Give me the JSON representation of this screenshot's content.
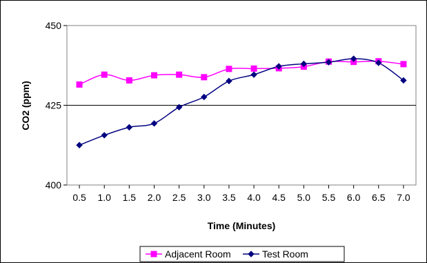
{
  "chart_data": {
    "type": "line",
    "title": "",
    "xlabel": "Time (Minutes)",
    "ylabel": "CO2 (ppm)",
    "x": [
      "0.5",
      "1.0",
      "1.5",
      "2.0",
      "2.5",
      "3.0",
      "3.5",
      "4.0",
      "4.5",
      "5.0",
      "5.5",
      "6.0",
      "6.5",
      "7.0"
    ],
    "ylim": [
      400,
      450
    ],
    "yticks": [
      "400",
      "425",
      "450"
    ],
    "grid": "horizontal gridline at 425",
    "legend_position": "bottom",
    "series": [
      {
        "name": "Adjacent Room",
        "color": "#FF00FF",
        "marker": "square",
        "values": [
          431.5,
          434.6,
          432.8,
          434.4,
          434.6,
          433.8,
          436.4,
          436.5,
          436.6,
          437.1,
          438.7,
          438.6,
          438.8,
          437.9
        ]
      },
      {
        "name": "Test Room",
        "color": "#000080",
        "marker": "diamond",
        "values": [
          412.5,
          415.6,
          418.1,
          419.3,
          424.4,
          427.6,
          432.6,
          434.6,
          437.2,
          438.0,
          438.5,
          439.6,
          438.3,
          432.8
        ]
      }
    ]
  }
}
